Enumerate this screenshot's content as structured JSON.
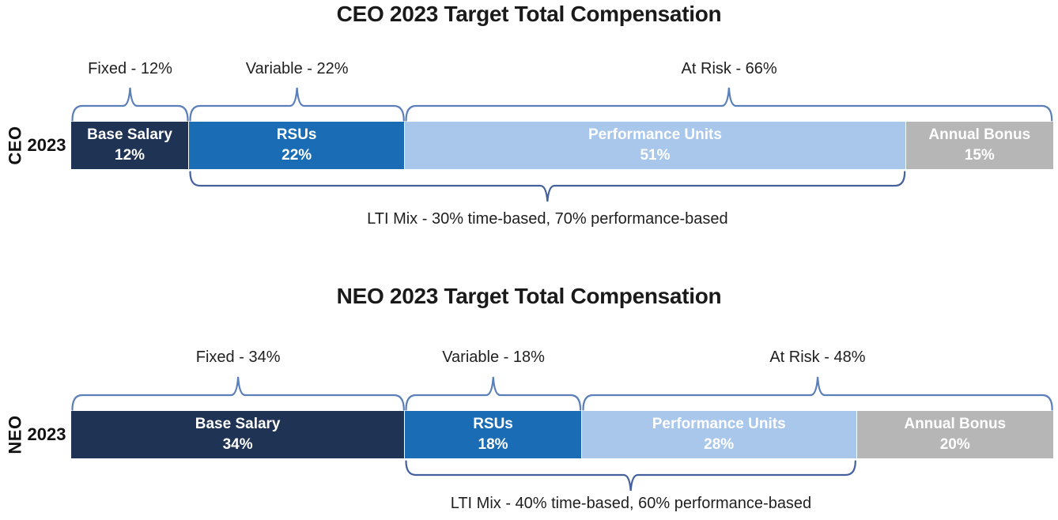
{
  "page": {
    "background": "#FFFFFF"
  },
  "styles": {
    "bar_text_color": "#FFFFFF",
    "top_brace_color": "#5B7FB9",
    "bottom_brace_color": "#44619D",
    "title_color": "#1A1A1A",
    "label_color": "#1F1F1F"
  },
  "chart_data": [
    {
      "type": "bar",
      "subtype": "stacked-horizontal-percent",
      "title": "CEO 2023 Target Total Compensation",
      "y_axis_group_label": "CEO",
      "y_axis_row_label": "2023",
      "xlim": [
        0,
        100
      ],
      "legend": "none",
      "grid": false,
      "segments": [
        {
          "name": "Base Salary",
          "value": 12,
          "value_label": "12%",
          "color": "#1F3355"
        },
        {
          "name": "RSUs",
          "value": 22,
          "value_label": "22%",
          "color": "#1A6CB4"
        },
        {
          "name": "Performance Units",
          "value": 51,
          "value_label": "51%",
          "color": "#A9C7EA"
        },
        {
          "name": "Annual Bonus",
          "value": 15,
          "value_label": "15%",
          "color": "#B6B6B6"
        }
      ],
      "top_brackets": [
        {
          "label": "Fixed - 12%",
          "from_pct": 0,
          "to_pct": 12
        },
        {
          "label": "Variable - 22%",
          "from_pct": 12,
          "to_pct": 34
        },
        {
          "label": "At Risk - 66%",
          "from_pct": 34,
          "to_pct": 100
        }
      ],
      "bottom_bracket": {
        "label": "LTI Mix - 30% time-based, 70% performance-based",
        "from_pct": 12,
        "to_pct": 85
      }
    },
    {
      "type": "bar",
      "subtype": "stacked-horizontal-percent",
      "title": "NEO 2023 Target Total Compensation",
      "y_axis_group_label": "NEO",
      "y_axis_row_label": "2023",
      "xlim": [
        0,
        100
      ],
      "legend": "none",
      "grid": false,
      "segments": [
        {
          "name": "Base Salary",
          "value": 34,
          "value_label": "34%",
          "color": "#1F3355"
        },
        {
          "name": "RSUs",
          "value": 18,
          "value_label": "18%",
          "color": "#1A6CB4"
        },
        {
          "name": "Performance Units",
          "value": 28,
          "value_label": "28%",
          "color": "#A9C7EA"
        },
        {
          "name": "Annual Bonus",
          "value": 20,
          "value_label": "20%",
          "color": "#B6B6B6"
        }
      ],
      "top_brackets": [
        {
          "label": "Fixed - 34%",
          "from_pct": 0,
          "to_pct": 34
        },
        {
          "label": "Variable - 18%",
          "from_pct": 34,
          "to_pct": 52
        },
        {
          "label": "At Risk - 48%",
          "from_pct": 52,
          "to_pct": 100
        }
      ],
      "bottom_bracket": {
        "label": "LTI Mix - 40% time-based, 60% performance-based",
        "from_pct": 34,
        "to_pct": 80
      }
    }
  ]
}
